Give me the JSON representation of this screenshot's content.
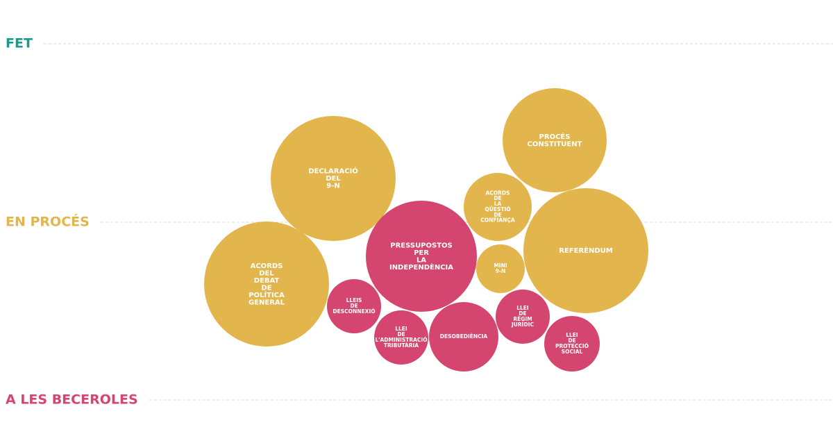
{
  "levels": [
    {
      "label": "FET",
      "color": "#1a9a8c"
    },
    {
      "label": "EN PROCÉS",
      "color": "#e2b64c"
    },
    {
      "label": "A LES BECEROLES",
      "color": "#d4466f"
    }
  ],
  "bubbles": [
    {
      "label": [
        "DECLARACIÓ",
        "DEL",
        "9-N"
      ],
      "color": "#e2b64c"
    },
    {
      "label": [
        "PROCÉS",
        "CONSTITUENT"
      ],
      "color": "#e2b64c"
    },
    {
      "label": [
        "ACORDS",
        "DE",
        "LA",
        "QÜESTIÓ",
        "DE",
        "CONFIANÇA"
      ],
      "color": "#e2b64c"
    },
    {
      "label": [
        "REFERÈNDUM"
      ],
      "color": "#e2b64c"
    },
    {
      "label": [
        "PRESSUPOSTOS",
        "PER",
        "LA",
        "INDEPENDÈNCIA"
      ],
      "color": "#d4466f"
    },
    {
      "label": [
        "MINI",
        "9-N"
      ],
      "color": "#e2b64c"
    },
    {
      "label": [
        "ACORDS",
        "DEL",
        "DEBAT",
        "DE",
        "POLÍTICA",
        "GENERAL"
      ],
      "color": "#e2b64c"
    },
    {
      "label": [
        "LLEIS",
        "DE",
        "DESCONNEXIÓ"
      ],
      "color": "#d4466f"
    },
    {
      "label": [
        "LLEI",
        "DE",
        "L'ADMINISTRACIÓ",
        "TRIBUTÀRIA"
      ],
      "color": "#d4466f"
    },
    {
      "label": [
        "DESOBEDIÈNCIA"
      ],
      "color": "#d4466f"
    },
    {
      "label": [
        "LLEI",
        "DE",
        "RÈGIM",
        "JURÍDIC"
      ],
      "color": "#d4466f"
    },
    {
      "label": [
        "LLEI",
        "DE",
        "PROTECCIÓ",
        "SOCIAL"
      ],
      "color": "#d4466f"
    }
  ]
}
